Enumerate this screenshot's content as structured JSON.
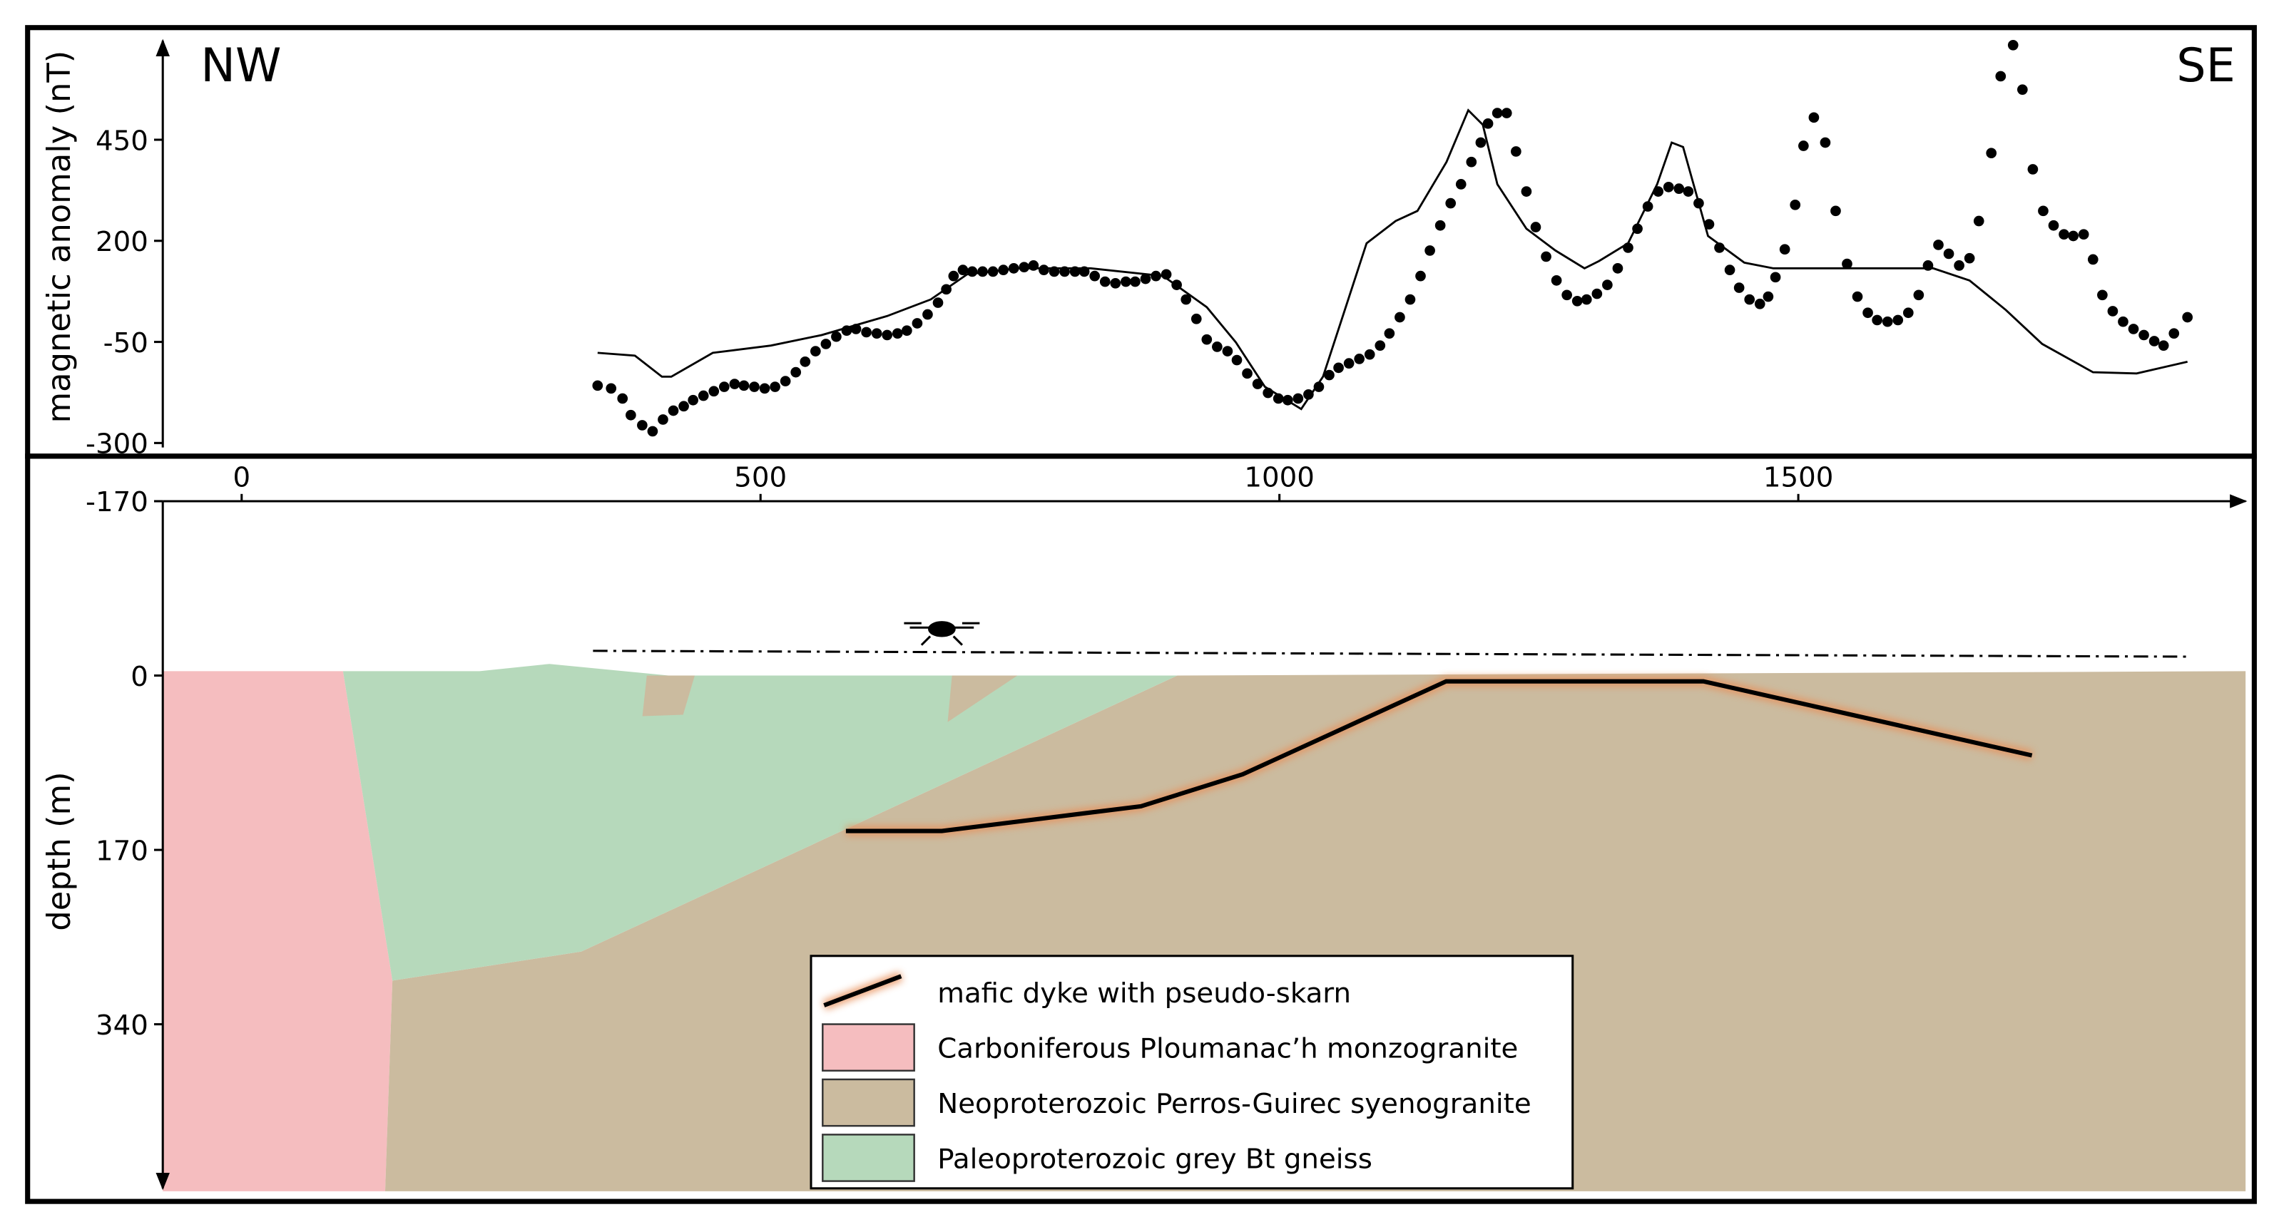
{
  "chart_data": [
    {
      "type": "line",
      "ylabel": "magnetic anomaly (nT)",
      "annotations": [
        "NW",
        "SE"
      ],
      "xlim": [
        -76,
        1931
      ],
      "ylim": [
        -311,
        695
      ],
      "yticks": [
        -300,
        -50,
        200,
        450
      ],
      "series": [
        {
          "mode": "markers",
          "color": "#000000",
          "x": [
            343,
            356,
            367,
            375,
            386,
            396,
            406,
            416,
            426,
            435,
            445,
            455,
            465,
            475,
            484,
            494,
            504,
            514,
            524,
            534,
            543,
            553,
            563,
            573,
            583,
            592,
            602,
            612,
            622,
            632,
            641,
            651,
            661,
            671,
            679,
            686,
            695,
            704,
            714,
            724,
            734,
            744,
            754,
            763,
            773,
            783,
            793,
            803,
            812,
            822,
            832,
            842,
            852,
            861,
            871,
            881,
            891,
            901,
            910,
            920,
            930,
            940,
            950,
            959,
            969,
            979,
            989,
            999,
            1008,
            1018,
            1028,
            1038,
            1048,
            1057,
            1067,
            1077,
            1087,
            1097,
            1106,
            1116,
            1126,
            1136,
            1145,
            1155,
            1165,
            1175,
            1185,
            1194,
            1201,
            1210,
            1219,
            1228,
            1238,
            1247,
            1257,
            1267,
            1277,
            1287,
            1296,
            1306,
            1316,
            1326,
            1336,
            1345,
            1355,
            1365,
            1375,
            1385,
            1394,
            1404,
            1414,
            1424,
            1434,
            1443,
            1453,
            1463,
            1471,
            1478,
            1487,
            1497,
            1505,
            1515,
            1526,
            1536,
            1547,
            1557,
            1567,
            1576,
            1586,
            1596,
            1606,
            1616,
            1625,
            1635,
            1645,
            1655,
            1665,
            1674,
            1686,
            1695,
            1707,
            1716,
            1726,
            1736,
            1746,
            1756,
            1765,
            1775,
            1784,
            1793,
            1803,
            1813,
            1823,
            1833,
            1843,
            1852,
            1862,
            1875
          ],
          "values": [
            -158,
            -165,
            -190,
            -231,
            -256,
            -271,
            -242,
            -220,
            -209,
            -194,
            -183,
            -172,
            -161,
            -154,
            -158,
            -161,
            -165,
            -161,
            -147,
            -125,
            -99,
            -73,
            -55,
            -37,
            -22,
            -18,
            -26,
            -29,
            -33,
            -29,
            -22,
            -4,
            18,
            47,
            80,
            113,
            128,
            124,
            124,
            124,
            128,
            132,
            135,
            139,
            128,
            124,
            124,
            124,
            124,
            113,
            99,
            95,
            99,
            99,
            106,
            113,
            117,
            91,
            55,
            7,
            -44,
            -62,
            -73,
            -95,
            -128,
            -154,
            -176,
            -190,
            -194,
            -190,
            -180,
            -161,
            -132,
            -114,
            -103,
            -92,
            -81,
            -59,
            -29,
            11,
            55,
            113,
            176,
            238,
            293,
            340,
            395,
            443,
            490,
            516,
            516,
            421,
            322,
            234,
            161,
            102,
            66,
            51,
            55,
            69,
            91,
            132,
            183,
            230,
            285,
            322,
            333,
            329,
            322,
            293,
            241,
            183,
            128,
            84,
            55,
            44,
            62,
            110,
            179,
            289,
            435,
            505,
            443,
            274,
            143,
            62,
            22,
            4,
            0,
            4,
            22,
            66,
            139,
            190,
            168,
            139,
            157,
            249,
            417,
            607,
            684,
            574,
            377,
            274,
            238,
            216,
            212,
            216,
            154,
            66,
            26,
            0,
            -18,
            -33,
            -48,
            -59,
            -29,
            11
          ]
        },
        {
          "mode": "line",
          "color": "#000000",
          "x": [
            343,
            379,
            405,
            414,
            454,
            510,
            559,
            622,
            664,
            699,
            748,
            818,
            888,
            930,
            958,
            986,
            1021,
            1042,
            1063,
            1084,
            1112,
            1133,
            1161,
            1182,
            1196,
            1210,
            1238,
            1266,
            1294,
            1308,
            1336,
            1364,
            1378,
            1389,
            1413,
            1448,
            1476,
            1630,
            1665,
            1700,
            1735,
            1784,
            1826,
            1875
          ],
          "values": [
            -77,
            -84,
            -136,
            -136,
            -77,
            -59,
            -33,
            14,
            55,
            117,
            132,
            132,
            113,
            36,
            -51,
            -161,
            -216,
            -136,
            29,
            194,
            249,
            274,
            395,
            523,
            487,
            340,
            230,
            176,
            132,
            150,
            194,
            340,
            443,
            432,
            212,
            146,
            132,
            132,
            102,
            29,
            -55,
            -125,
            -128,
            -99
          ]
        }
      ]
    },
    {
      "type": "section",
      "ylabel": "depth (m)",
      "xlim": [
        -76,
        1931
      ],
      "xticks": [
        0,
        500,
        1000,
        1500
      ],
      "ylim": [
        -170,
        500
      ],
      "yticks": [
        -170,
        0,
        170,
        340
      ],
      "y_inverted": true,
      "legend": [
        {
          "label": "mafic dyke with pseudo-skarn",
          "color": "#000000"
        },
        {
          "label": "Carboniferous Ploumanac’h monzogranite",
          "color": "#f5bdbf"
        },
        {
          "label": "Neoproterozoic Perros-Guirec syenogranite",
          "color": "#cbbb9f"
        },
        {
          "label": "Paleoproterozoic grey Bt gneiss",
          "color": "#b6d9bb"
        }
      ]
    }
  ]
}
